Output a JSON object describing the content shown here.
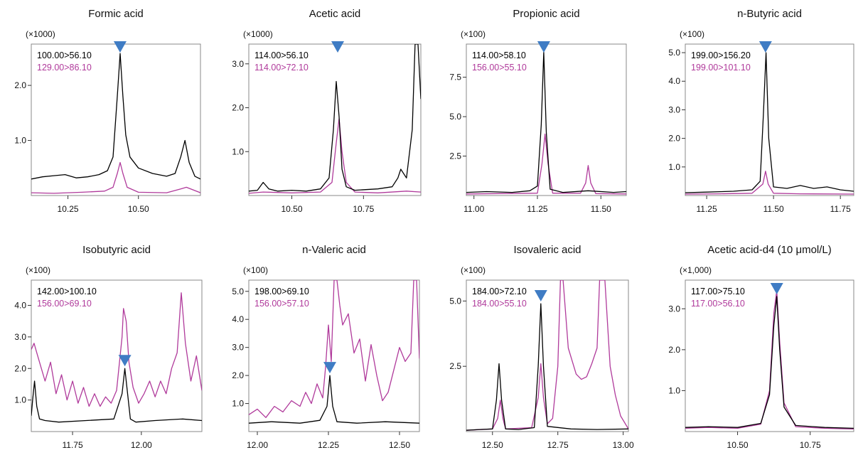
{
  "colors": {
    "trace_primary": "#000000",
    "trace_secondary": "#b03a9b",
    "marker": "#3f7cc4",
    "frame": "#888888"
  },
  "chart_data": [
    {
      "type": "line",
      "title": "Formic acid",
      "scale_label": "(×1000)",
      "x_ticks": [
        10.25,
        10.5
      ],
      "x_tick_labels": [
        "10.25",
        "10.50"
      ],
      "y_ticks": [
        1.0,
        2.0
      ],
      "y_tick_labels": [
        "1.0",
        "2.0"
      ],
      "xlim": [
        10.12,
        10.72
      ],
      "ylim": [
        0,
        2.75
      ],
      "series": [
        {
          "name": "100.00>56.10",
          "color": "#000000",
          "x": [
            10.12,
            10.16,
            10.2,
            10.24,
            10.28,
            10.32,
            10.36,
            10.39,
            10.41,
            10.425,
            10.435,
            10.445,
            10.455,
            10.47,
            10.5,
            10.55,
            10.6,
            10.63,
            10.65,
            10.665,
            10.68,
            10.7,
            10.72
          ],
          "y": [
            0.3,
            0.34,
            0.36,
            0.38,
            0.32,
            0.34,
            0.38,
            0.45,
            0.7,
            1.8,
            2.58,
            1.8,
            1.1,
            0.7,
            0.5,
            0.4,
            0.35,
            0.4,
            0.7,
            1.0,
            0.6,
            0.35,
            0.3
          ]
        },
        {
          "name": "129.00>86.10",
          "color": "#b03a9b",
          "x": [
            10.12,
            10.2,
            10.3,
            10.38,
            10.41,
            10.425,
            10.435,
            10.445,
            10.46,
            10.5,
            10.6,
            10.65,
            10.67,
            10.72
          ],
          "y": [
            0.05,
            0.04,
            0.06,
            0.08,
            0.15,
            0.4,
            0.6,
            0.4,
            0.15,
            0.06,
            0.05,
            0.12,
            0.15,
            0.05
          ]
        }
      ],
      "peak_marker_x": 10.435
    },
    {
      "type": "line",
      "title": "Acetic acid",
      "scale_label": "(×1000)",
      "x_ticks": [
        10.5,
        10.75
      ],
      "x_tick_labels": [
        "10.50",
        "10.75"
      ],
      "y_ticks": [
        1.0,
        2.0,
        3.0
      ],
      "y_tick_labels": [
        "1.0",
        "2.0",
        "3.0"
      ],
      "xlim": [
        10.35,
        10.95
      ],
      "ylim": [
        0,
        3.45
      ],
      "series": [
        {
          "name": "114.00>56.10",
          "color": "#000000",
          "x": [
            10.35,
            10.38,
            10.4,
            10.42,
            10.45,
            10.5,
            10.55,
            10.6,
            10.63,
            10.645,
            10.655,
            10.665,
            10.675,
            10.69,
            10.72,
            10.8,
            10.85,
            10.87,
            10.88,
            10.9,
            10.92,
            10.93,
            10.94,
            10.95
          ],
          "y": [
            0.1,
            0.12,
            0.3,
            0.15,
            0.1,
            0.12,
            0.1,
            0.15,
            0.4,
            1.5,
            2.6,
            1.8,
            0.6,
            0.2,
            0.12,
            0.15,
            0.2,
            0.4,
            0.6,
            0.4,
            1.5,
            3.45,
            3.45,
            2.2
          ]
        },
        {
          "name": "114.00>72.10",
          "color": "#b03a9b",
          "x": [
            10.35,
            10.4,
            10.5,
            10.6,
            10.64,
            10.655,
            10.665,
            10.675,
            10.69,
            10.72,
            10.8,
            10.9,
            10.95
          ],
          "y": [
            0.05,
            0.08,
            0.06,
            0.08,
            0.3,
            1.2,
            1.75,
            1.0,
            0.3,
            0.08,
            0.06,
            0.1,
            0.08
          ]
        }
      ],
      "peak_marker_x": 10.66
    },
    {
      "type": "line",
      "title": "Propionic acid",
      "scale_label": "(×100)",
      "x_ticks": [
        11.0,
        11.25,
        11.5
      ],
      "x_tick_labels": [
        "11.00",
        "11.25",
        "11.50"
      ],
      "y_ticks": [
        2.5,
        5.0,
        7.5
      ],
      "y_tick_labels": [
        "2.5",
        "5.0",
        "7.5"
      ],
      "xlim": [
        10.97,
        11.6
      ],
      "ylim": [
        0,
        9.6
      ],
      "series": [
        {
          "name": "114.00>58.10",
          "color": "#000000",
          "x": [
            10.97,
            11.05,
            11.15,
            11.22,
            11.25,
            11.265,
            11.275,
            11.285,
            11.3,
            11.35,
            11.45,
            11.55,
            11.6
          ],
          "y": [
            0.2,
            0.25,
            0.2,
            0.3,
            0.6,
            4.5,
            9.1,
            4.0,
            0.4,
            0.2,
            0.3,
            0.2,
            0.25
          ]
        },
        {
          "name": "156.00>55.10",
          "color": "#b03a9b",
          "x": [
            10.97,
            11.1,
            11.25,
            11.268,
            11.28,
            11.292,
            11.31,
            11.42,
            11.44,
            11.45,
            11.46,
            11.48,
            11.6
          ],
          "y": [
            0.1,
            0.12,
            0.15,
            2.0,
            3.9,
            2.0,
            0.15,
            0.15,
            0.8,
            1.9,
            0.8,
            0.12,
            0.1
          ]
        }
      ],
      "peak_marker_x": 11.275
    },
    {
      "type": "line",
      "title": "n-Butyric acid",
      "scale_label": "(×100)",
      "x_ticks": [
        11.25,
        11.5,
        11.75
      ],
      "x_tick_labels": [
        "11.25",
        "11.50",
        "11.75"
      ],
      "y_ticks": [
        1.0,
        2.0,
        3.0,
        4.0,
        5.0
      ],
      "y_tick_labels": [
        "1.0",
        "2.0",
        "3.0",
        "4.0",
        "5.0"
      ],
      "xlim": [
        11.17,
        11.8
      ],
      "ylim": [
        0,
        5.3
      ],
      "series": [
        {
          "name": "199.00>156.20",
          "color": "#000000",
          "x": [
            11.17,
            11.25,
            11.35,
            11.42,
            11.45,
            11.462,
            11.472,
            11.482,
            11.5,
            11.55,
            11.6,
            11.65,
            11.7,
            11.75,
            11.8
          ],
          "y": [
            0.1,
            0.12,
            0.15,
            0.2,
            0.5,
            2.8,
            5.0,
            2.0,
            0.3,
            0.25,
            0.35,
            0.25,
            0.3,
            0.2,
            0.15
          ]
        },
        {
          "name": "199.00>101.10",
          "color": "#b03a9b",
          "x": [
            11.17,
            11.3,
            11.42,
            11.46,
            11.47,
            11.48,
            11.5,
            11.6,
            11.8
          ],
          "y": [
            0.05,
            0.06,
            0.08,
            0.4,
            0.85,
            0.4,
            0.08,
            0.06,
            0.05
          ]
        }
      ],
      "peak_marker_x": 11.47
    },
    {
      "type": "line",
      "title": "Isobutyric acid",
      "scale_label": "(×100)",
      "x_ticks": [
        11.75,
        12.0
      ],
      "x_tick_labels": [
        "11.75",
        "12.00"
      ],
      "y_ticks": [
        1.0,
        2.0,
        3.0,
        4.0
      ],
      "y_tick_labels": [
        "1.0",
        "2.0",
        "3.0",
        "4.0"
      ],
      "xlim": [
        11.6,
        12.22
      ],
      "ylim": [
        0,
        4.8
      ],
      "series": [
        {
          "name": "142.00>100.10",
          "color": "#000000",
          "x": [
            11.6,
            11.605,
            11.612,
            11.62,
            11.63,
            11.65,
            11.7,
            11.8,
            11.9,
            11.93,
            11.94,
            11.95,
            11.96,
            11.98,
            12.05,
            12.15,
            12.22
          ],
          "y": [
            0.5,
            1.0,
            1.6,
            0.8,
            0.4,
            0.35,
            0.3,
            0.35,
            0.4,
            1.2,
            2.0,
            1.2,
            0.4,
            0.3,
            0.35,
            0.4,
            0.35
          ]
        },
        {
          "name": "156.00>69.10",
          "color": "#b03a9b",
          "x": [
            11.6,
            11.61,
            11.62,
            11.63,
            11.65,
            11.67,
            11.69,
            11.71,
            11.73,
            11.75,
            11.77,
            11.79,
            11.81,
            11.83,
            11.85,
            11.87,
            11.89,
            11.91,
            11.93,
            11.935,
            11.945,
            11.955,
            11.97,
            11.99,
            12.01,
            12.03,
            12.05,
            12.07,
            12.09,
            12.11,
            12.13,
            12.145,
            12.16,
            12.18,
            12.2,
            12.22
          ],
          "y": [
            2.6,
            2.8,
            2.5,
            2.2,
            1.6,
            2.2,
            1.2,
            1.8,
            1.0,
            1.6,
            0.9,
            1.4,
            0.8,
            1.2,
            0.8,
            1.1,
            0.9,
            1.3,
            3.0,
            3.9,
            3.5,
            2.2,
            1.4,
            0.9,
            1.2,
            1.6,
            1.1,
            1.6,
            1.2,
            2.0,
            2.5,
            4.4,
            2.8,
            1.6,
            2.4,
            1.3
          ]
        }
      ],
      "peak_marker_x": 11.94
    },
    {
      "type": "line",
      "title": "n-Valeric acid",
      "scale_label": "(×100)",
      "x_ticks": [
        12.0,
        12.25,
        12.5
      ],
      "x_tick_labels": [
        "12.00",
        "12.25",
        "12.50"
      ],
      "y_ticks": [
        1.0,
        2.0,
        3.0,
        4.0,
        5.0
      ],
      "y_tick_labels": [
        "1.0",
        "2.0",
        "3.0",
        "4.0",
        "5.0"
      ],
      "xlim": [
        11.97,
        12.57
      ],
      "ylim": [
        0,
        5.4
      ],
      "series": [
        {
          "name": "198.00>69.10",
          "color": "#000000",
          "x": [
            11.97,
            12.05,
            12.15,
            12.22,
            12.245,
            12.255,
            12.265,
            12.28,
            12.35,
            12.45,
            12.57
          ],
          "y": [
            0.3,
            0.35,
            0.3,
            0.4,
            0.9,
            2.0,
            0.9,
            0.35,
            0.3,
            0.35,
            0.3
          ]
        },
        {
          "name": "156.00>57.10",
          "color": "#b03a9b",
          "x": [
            11.97,
            12.0,
            12.03,
            12.06,
            12.09,
            12.12,
            12.15,
            12.17,
            12.19,
            12.21,
            12.23,
            12.24,
            12.25,
            12.26,
            12.27,
            12.28,
            12.29,
            12.3,
            12.32,
            12.34,
            12.36,
            12.38,
            12.4,
            12.42,
            12.44,
            12.46,
            12.48,
            12.5,
            12.52,
            12.54,
            12.55,
            12.56,
            12.57
          ],
          "y": [
            0.6,
            0.8,
            0.5,
            0.9,
            0.7,
            1.1,
            0.9,
            1.4,
            1.0,
            1.7,
            1.2,
            2.3,
            3.8,
            2.5,
            5.4,
            5.4,
            4.5,
            3.8,
            4.2,
            2.8,
            3.3,
            1.8,
            3.1,
            2.0,
            1.1,
            1.4,
            2.2,
            3.0,
            2.5,
            2.8,
            5.4,
            5.4,
            2.6
          ]
        }
      ],
      "peak_marker_x": 12.255
    },
    {
      "type": "line",
      "title": "Isovaleric acid",
      "scale_label": "(×100)",
      "x_ticks": [
        12.5,
        12.75,
        13.0
      ],
      "x_tick_labels": [
        "12.50",
        "12.75",
        "13.00"
      ],
      "y_ticks": [
        2.5,
        5.0
      ],
      "y_tick_labels": [
        "2.5",
        "5.0"
      ],
      "xlim": [
        12.4,
        13.02
      ],
      "ylim": [
        0,
        5.8
      ],
      "series": [
        {
          "name": "184.00>72.10",
          "color": "#000000",
          "x": [
            12.4,
            12.45,
            12.5,
            12.515,
            12.525,
            12.535,
            12.55,
            12.6,
            12.66,
            12.675,
            12.685,
            12.695,
            12.71,
            12.8,
            12.9,
            13.02
          ],
          "y": [
            0.05,
            0.08,
            0.1,
            1.2,
            2.6,
            1.2,
            0.1,
            0.08,
            0.15,
            2.5,
            4.9,
            2.5,
            0.2,
            0.1,
            0.08,
            0.1
          ]
        },
        {
          "name": "184.00>55.10",
          "color": "#b03a9b",
          "x": [
            12.4,
            12.5,
            12.52,
            12.53,
            12.54,
            12.55,
            12.65,
            12.675,
            12.685,
            12.695,
            12.71,
            12.73,
            12.75,
            12.76,
            12.77,
            12.79,
            12.82,
            12.84,
            12.86,
            12.88,
            12.9,
            12.91,
            12.93,
            12.95,
            12.97,
            12.99,
            13.02
          ],
          "y": [
            0.05,
            0.1,
            0.5,
            1.2,
            0.5,
            0.1,
            0.15,
            1.3,
            2.6,
            1.3,
            0.3,
            0.5,
            2.5,
            5.8,
            5.8,
            3.2,
            2.2,
            2.0,
            2.1,
            2.6,
            3.2,
            5.8,
            5.8,
            2.5,
            1.4,
            0.6,
            0.1
          ]
        }
      ],
      "peak_marker_x": 12.685
    },
    {
      "type": "line",
      "title": "Acetic acid-d4 (10 μmol/L)",
      "scale_label": "(×1,000)",
      "x_ticks": [
        10.5,
        10.75
      ],
      "x_tick_labels": [
        "10.50",
        "10.75"
      ],
      "y_ticks": [
        1.0,
        2.0,
        3.0
      ],
      "y_tick_labels": [
        "1.0",
        "2.0",
        "3.0"
      ],
      "xlim": [
        10.32,
        10.9
      ],
      "ylim": [
        0,
        3.7
      ],
      "series": [
        {
          "name": "117.00>75.10",
          "color": "#000000",
          "x": [
            10.32,
            10.4,
            10.5,
            10.58,
            10.61,
            10.625,
            10.635,
            10.645,
            10.66,
            10.7,
            10.8,
            10.9
          ],
          "y": [
            0.1,
            0.12,
            0.1,
            0.2,
            0.9,
            2.6,
            3.3,
            2.0,
            0.6,
            0.15,
            0.1,
            0.08
          ]
        },
        {
          "name": "117.00>56.10",
          "color": "#b03a9b",
          "x": [
            10.32,
            10.4,
            10.5,
            10.58,
            10.61,
            10.625,
            10.635,
            10.645,
            10.66,
            10.7,
            10.8,
            10.9
          ],
          "y": [
            0.08,
            0.1,
            0.08,
            0.18,
            1.0,
            2.9,
            3.45,
            2.2,
            0.7,
            0.12,
            0.08,
            0.06
          ]
        }
      ],
      "peak_marker_x": 10.635
    }
  ]
}
